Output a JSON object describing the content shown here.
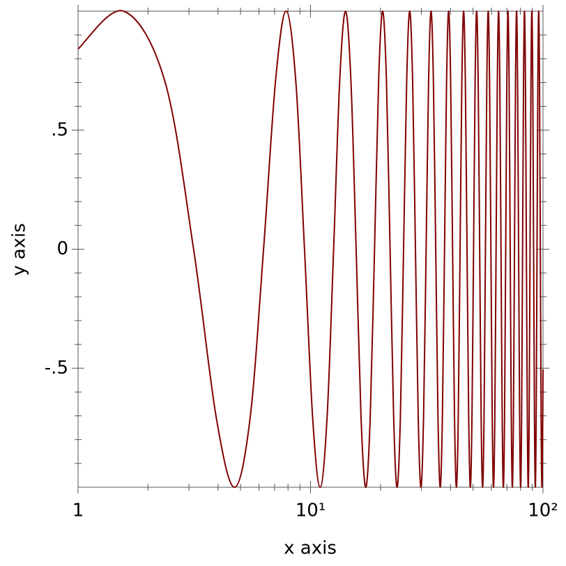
{
  "chart_data": {
    "type": "line",
    "xlabel": "x axis",
    "ylabel": "y axis",
    "color": "#800000",
    "xscale": "log",
    "xlim": [
      1,
      100
    ],
    "ylim": [
      -1,
      1
    ],
    "xticks": [
      1,
      {
        "value": 10,
        "label": "10¹"
      },
      {
        "value": 100,
        "label": "10²"
      }
    ],
    "xticks_minor": [
      2,
      3,
      4,
      5,
      6,
      7,
      8,
      9,
      20,
      30,
      40,
      50,
      60,
      70,
      80,
      90
    ],
    "yticks": [
      {
        "value": -0.5,
        "label": "-.5"
      },
      0,
      {
        "value": 0.5,
        "label": ".5"
      }
    ],
    "yticks_minor": [
      -0.9,
      -0.8,
      -0.7,
      -0.6,
      -0.4,
      -0.3,
      -0.2,
      -0.1,
      0.1,
      0.2,
      0.3,
      0.4,
      0.6,
      0.7,
      0.8,
      0.9
    ],
    "x": [
      1,
      1.57,
      2.36,
      3.14,
      3.93,
      4.71,
      5.5,
      6.28,
      7.07,
      7.85,
      8.64,
      9.42,
      10.21,
      11.0,
      11.78,
      12.57,
      13.35,
      14.14,
      14.92,
      15.71,
      16.49,
      17.28,
      18.06,
      18.85,
      19.63,
      20.42,
      21.21,
      21.99,
      22.78,
      23.56,
      24.35,
      25.13,
      25.92,
      26.7,
      27.49,
      28.27,
      29.06,
      29.85,
      30.63,
      31.42,
      32.2,
      32.99,
      33.77,
      34.56,
      35.34,
      36.13,
      36.91,
      37.7,
      38.48,
      39.27,
      40.06,
      40.84,
      41.63,
      42.41,
      43.2,
      43.98,
      44.77,
      45.55,
      46.34,
      47.12,
      47.91,
      48.69,
      49.48,
      50.27,
      51.05,
      51.84,
      52.62,
      53.41,
      54.19,
      54.98,
      55.76,
      56.55,
      57.33,
      58.12,
      58.9,
      59.69,
      60.48,
      61.26,
      62.05,
      62.83,
      63.62,
      64.4,
      65.19,
      65.97,
      66.76,
      67.54,
      68.33,
      69.12,
      69.9,
      70.69,
      71.47,
      72.26,
      73.04,
      73.83,
      74.61,
      75.4,
      76.18,
      76.97,
      77.75,
      78.54,
      79.33,
      80.11,
      80.9,
      81.68,
      82.47,
      83.25,
      84.04,
      84.82,
      85.61,
      86.39,
      87.18,
      87.96,
      88.75,
      89.54,
      90.32,
      91.11,
      91.89,
      92.68,
      93.46,
      94.25,
      95.03,
      95.82,
      96.6,
      97.39,
      98.17,
      98.96,
      99.75,
      100
    ],
    "values": [
      0.841,
      1,
      0.707,
      0,
      -0.707,
      -1,
      -0.707,
      0,
      0.707,
      1,
      0.707,
      0,
      -0.707,
      -1,
      -0.707,
      0,
      0.707,
      1,
      0.707,
      0,
      -0.707,
      -1,
      -0.707,
      0,
      0.707,
      1,
      0.707,
      0,
      -0.707,
      -1,
      -0.707,
      0,
      0.707,
      1,
      0.707,
      0,
      -0.707,
      -1,
      -0.707,
      0,
      0.707,
      1,
      0.707,
      0,
      -0.707,
      -1,
      -0.707,
      0,
      0.707,
      1,
      0.707,
      0,
      -0.707,
      -1,
      -0.707,
      0,
      0.707,
      1,
      0.707,
      0,
      -0.707,
      -1,
      -0.707,
      0,
      0.707,
      1,
      0.707,
      0,
      -0.707,
      -1,
      -0.707,
      0,
      0.707,
      1,
      0.707,
      0,
      -0.707,
      -1,
      -0.707,
      0,
      0.707,
      1,
      0.707,
      0,
      -0.707,
      -1,
      -0.707,
      0,
      0.707,
      1,
      0.707,
      0,
      -0.707,
      -1,
      -0.707,
      0,
      0.707,
      1,
      0.707,
      0,
      -0.707,
      -1,
      -0.707,
      0,
      0.707,
      1,
      0.707,
      0,
      -0.707,
      -1,
      -0.707,
      0,
      0.707,
      1,
      0.707,
      0,
      -0.707,
      -1,
      -0.707,
      0,
      0.707,
      1,
      0.707,
      0,
      -0.707,
      -1,
      -0.707,
      -0.506
    ]
  }
}
